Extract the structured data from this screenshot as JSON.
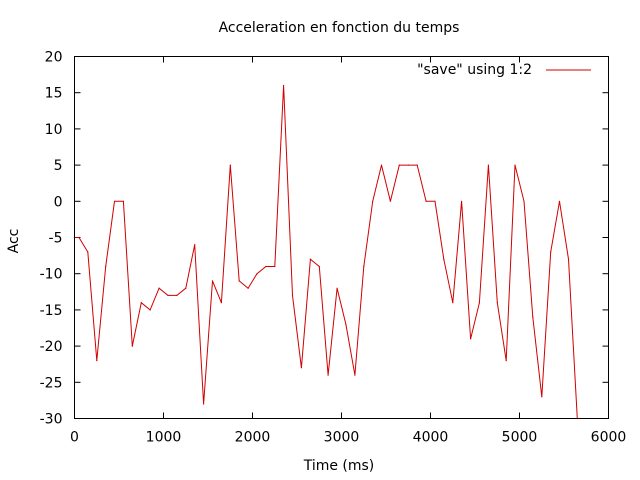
{
  "chart_data": {
    "type": "line",
    "title": "Acceleration en fonction du temps",
    "xlabel": "Time (ms)",
    "ylabel": "Acc",
    "xlim": [
      0,
      6000
    ],
    "ylim": [
      -30,
      20
    ],
    "xticks": [
      "0",
      "1000",
      "2000",
      "3000",
      "4000",
      "5000",
      "6000"
    ],
    "yticks": [
      "20",
      "15",
      "10",
      "5",
      "0",
      "-5",
      "-10",
      "-15",
      "-20",
      "-25",
      "-30"
    ],
    "grid": false,
    "legend_position": "top-right",
    "series": [
      {
        "name": "\"save\" using 1:2",
        "color": "#d00000",
        "x": [
          0,
          50,
          150,
          250,
          350,
          450,
          550,
          650,
          750,
          850,
          950,
          1050,
          1150,
          1250,
          1350,
          1450,
          1550,
          1650,
          1750,
          1850,
          1950,
          2050,
          2150,
          2250,
          2350,
          2450,
          2550,
          2650,
          2750,
          2850,
          2950,
          3050,
          3150,
          3250,
          3350,
          3450,
          3550,
          3650,
          3750,
          3850,
          3950,
          4050,
          4150,
          4250,
          4350,
          4450,
          4550,
          4650,
          4750,
          4850,
          4950,
          5050,
          5150,
          5250,
          5350,
          5450,
          5550,
          5650
        ],
        "values": [
          -5,
          -5,
          -7,
          -22,
          -9,
          0,
          0,
          -20,
          -14,
          -15,
          -12,
          -13,
          -13,
          -12,
          -6,
          -28,
          -11,
          -14,
          5,
          -11,
          -12,
          -10,
          -9,
          -9,
          16,
          -13,
          -23,
          -8,
          -9,
          -24,
          -12,
          -17,
          -24,
          -9,
          0,
          5,
          0,
          5,
          5,
          5,
          0,
          0,
          -8,
          -14,
          0,
          -19,
          -14,
          5,
          -14,
          -22,
          5,
          0,
          -16,
          -27,
          -7,
          0,
          -8,
          -30
        ]
      }
    ]
  }
}
